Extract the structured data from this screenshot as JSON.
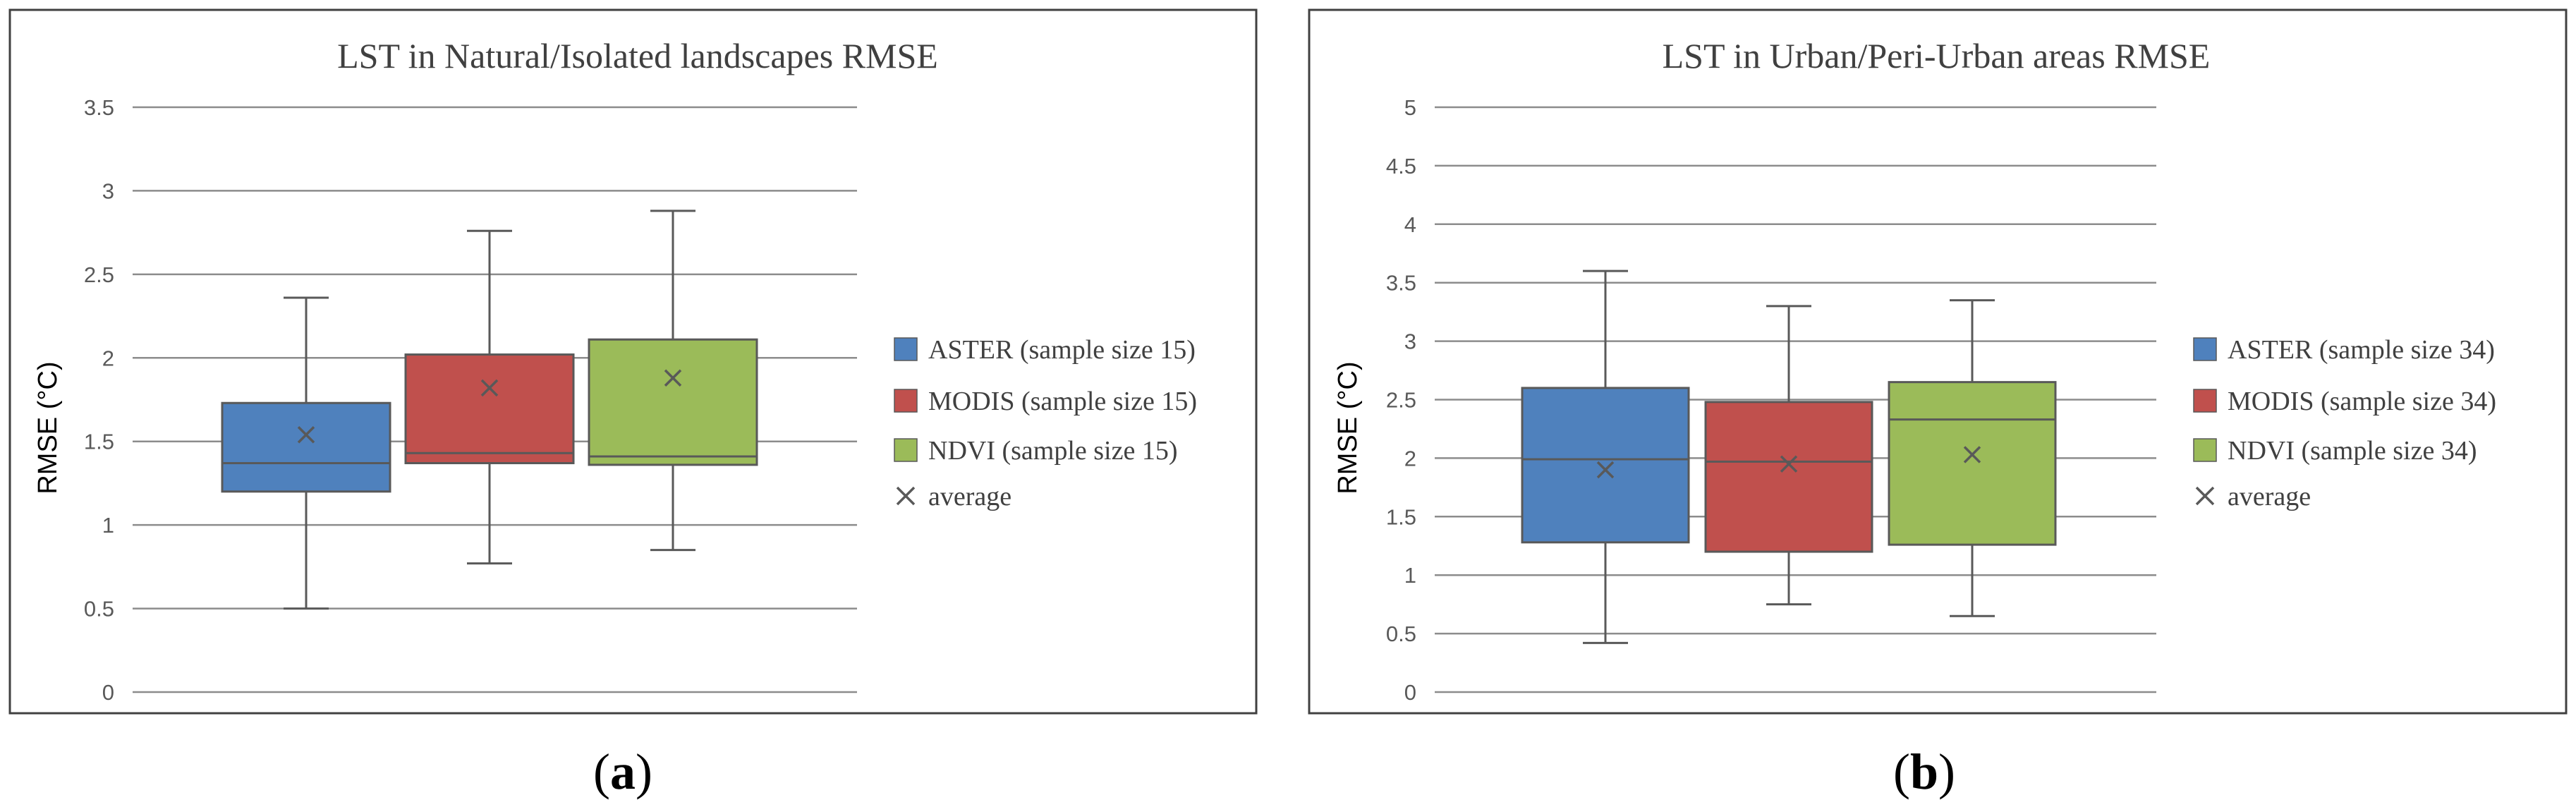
{
  "colors": {
    "aster": "#4F81BD",
    "modis": "#C0504D",
    "ndvi": "#9BBB59",
    "stroke": "#595959",
    "grid": "#8C8C8C"
  },
  "chart_data": [
    {
      "type": "box",
      "panel_label_open": "(",
      "panel_label_letter": "a",
      "panel_label_close": ")",
      "title": "LST in Natural/Isolated landscapes RMSE",
      "ylabel": "RMSE (°C)",
      "ylim": [
        0,
        3.5
      ],
      "yticks": [
        0,
        0.5,
        1,
        1.5,
        2,
        2.5,
        3,
        3.5
      ],
      "ytick_labels": [
        "0",
        "0.5",
        "1",
        "1.5",
        "2",
        "2.5",
        "3",
        "3.5"
      ],
      "grid": true,
      "legend_position": "right",
      "series": [
        {
          "name": "ASTER (sample size 15)",
          "color": "#4F81BD",
          "min": 0.5,
          "q1": 1.2,
          "median": 1.37,
          "q3": 1.73,
          "max": 2.36,
          "mean": 1.54
        },
        {
          "name": "MODIS (sample size 15)",
          "color": "#C0504D",
          "min": 0.77,
          "q1": 1.37,
          "median": 1.43,
          "q3": 2.02,
          "max": 2.76,
          "mean": 1.82
        },
        {
          "name": "NDVI (sample size 15)",
          "color": "#9BBB59",
          "min": 0.85,
          "q1": 1.36,
          "median": 1.41,
          "q3": 2.11,
          "max": 2.88,
          "mean": 1.88
        }
      ],
      "mean_legend_label": "average"
    },
    {
      "type": "box",
      "panel_label_open": "(",
      "panel_label_letter": "b",
      "panel_label_close": ")",
      "title": "LST in Urban/Peri-Urban areas RMSE",
      "ylabel": "RMSE (°C)",
      "ylim": [
        0,
        5
      ],
      "yticks": [
        0,
        0.5,
        1,
        1.5,
        2,
        2.5,
        3,
        3.5,
        4,
        4.5,
        5
      ],
      "ytick_labels": [
        "0",
        "0.5",
        "1",
        "1.5",
        "2",
        "2.5",
        "3",
        "3.5",
        "4",
        "4.5",
        "5"
      ],
      "grid": true,
      "legend_position": "right",
      "series": [
        {
          "name": "ASTER (sample size 34)",
          "color": "#4F81BD",
          "min": 0.42,
          "q1": 1.28,
          "median": 1.99,
          "q3": 2.6,
          "max": 3.6,
          "mean": 1.9
        },
        {
          "name": "MODIS (sample size 34)",
          "color": "#C0504D",
          "min": 0.75,
          "q1": 1.2,
          "median": 1.97,
          "q3": 2.48,
          "max": 3.3,
          "mean": 1.95
        },
        {
          "name": "NDVI (sample size 34)",
          "color": "#9BBB59",
          "min": 0.65,
          "q1": 1.26,
          "median": 2.33,
          "q3": 2.65,
          "max": 3.35,
          "mean": 2.03
        }
      ],
      "mean_legend_label": "average"
    }
  ]
}
